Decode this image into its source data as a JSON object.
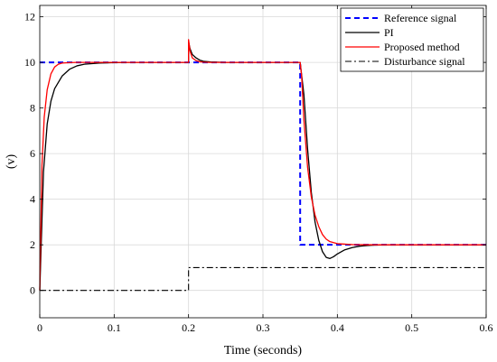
{
  "chart_data": {
    "type": "line",
    "xlabel": "Time (seconds)",
    "ylabel": "(v)",
    "xlim": [
      0,
      0.6
    ],
    "ylim": [
      -1.2,
      12.5
    ],
    "xticks": [
      0,
      0.1,
      0.2,
      0.3,
      0.4,
      0.5,
      0.6
    ],
    "xtick_labels": [
      "0",
      "0.1",
      "0.2",
      "0.3",
      "0.4",
      "0.5",
      "0.6"
    ],
    "yticks": [
      0,
      2,
      4,
      6,
      8,
      10,
      12
    ],
    "ytick_labels": [
      "0",
      "2",
      "4",
      "6",
      "8",
      "10",
      "12"
    ],
    "grid": true,
    "legend_position": "top-right",
    "series": [
      {
        "name": "Reference signal",
        "color": "#0000ff",
        "dash": "dashed",
        "x": [
          0,
          0.35,
          0.35,
          0.6
        ],
        "y": [
          10,
          10,
          2,
          2
        ]
      },
      {
        "name": "PI",
        "color": "#000000",
        "dash": "solid",
        "x": [
          0,
          0.005,
          0.01,
          0.015,
          0.02,
          0.03,
          0.04,
          0.05,
          0.06,
          0.08,
          0.1,
          0.12,
          0.15,
          0.2,
          0.2,
          0.202,
          0.205,
          0.21,
          0.215,
          0.22,
          0.23,
          0.25,
          0.3,
          0.35,
          0.355,
          0.36,
          0.365,
          0.37,
          0.375,
          0.38,
          0.385,
          0.39,
          0.395,
          0.4,
          0.41,
          0.42,
          0.43,
          0.44,
          0.45,
          0.47,
          0.5,
          0.6
        ],
        "y": [
          0,
          5.2,
          7.3,
          8.3,
          8.85,
          9.4,
          9.7,
          9.85,
          9.92,
          9.97,
          9.99,
          10,
          10,
          10,
          10.9,
          10.6,
          10.35,
          10.2,
          10.1,
          10.05,
          10.02,
          10,
          10,
          10,
          8.6,
          6.2,
          4.3,
          3.0,
          2.2,
          1.7,
          1.45,
          1.4,
          1.48,
          1.6,
          1.78,
          1.88,
          1.94,
          1.97,
          1.99,
          2,
          2,
          2
        ]
      },
      {
        "name": "Proposed method",
        "color": "#ff0000",
        "dash": "solid",
        "x": [
          0,
          0.003,
          0.006,
          0.01,
          0.015,
          0.02,
          0.025,
          0.03,
          0.04,
          0.05,
          0.07,
          0.1,
          0.15,
          0.2,
          0.2,
          0.202,
          0.205,
          0.21,
          0.215,
          0.22,
          0.23,
          0.25,
          0.3,
          0.35,
          0.352,
          0.355,
          0.36,
          0.365,
          0.37,
          0.375,
          0.38,
          0.385,
          0.39,
          0.4,
          0.42,
          0.45,
          0.5,
          0.6
        ],
        "y": [
          0,
          5.5,
          7.6,
          8.8,
          9.5,
          9.8,
          9.92,
          9.97,
          9.99,
          10,
          10,
          10,
          10,
          10,
          11.0,
          10.5,
          10.2,
          10.08,
          10.03,
          10.01,
          10,
          10,
          10,
          10,
          9.4,
          7.5,
          5.4,
          4.1,
          3.3,
          2.8,
          2.45,
          2.25,
          2.14,
          2.05,
          2.01,
          2,
          2,
          2
        ]
      },
      {
        "name": "Disturbance signal",
        "color": "#000000",
        "dash": "dashdot",
        "x": [
          0,
          0.2,
          0.2,
          0.6
        ],
        "y": [
          0,
          0,
          1,
          1
        ]
      }
    ]
  }
}
